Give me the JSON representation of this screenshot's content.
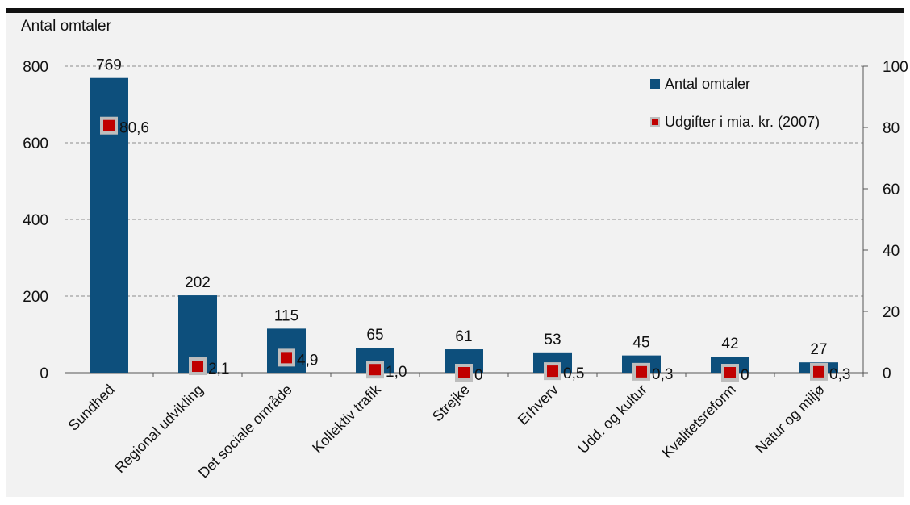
{
  "chart_data": {
    "type": "bar",
    "y_axis_title": "Antal omtaler",
    "categories": [
      "Sundhed",
      "Regional udvikling",
      "Det sociale område",
      "Kollektiv trafik",
      "Strejke",
      "Erhverv",
      "Udd. og kultur",
      "Kvalitetsreform",
      "Natur og miljø"
    ],
    "series": [
      {
        "name": "Antal omtaler",
        "kind": "bar",
        "axis": "left",
        "color": "#0d4f7c",
        "values": [
          769,
          202,
          115,
          65,
          61,
          53,
          45,
          42,
          27
        ],
        "labels": [
          "769",
          "202",
          "115",
          "65",
          "61",
          "53",
          "45",
          "42",
          "27"
        ]
      },
      {
        "name": "Udgifter i mia. kr. (2007)",
        "kind": "marker",
        "axis": "right",
        "color": "#c00000",
        "values": [
          80.6,
          2.1,
          4.9,
          1.0,
          0,
          0.5,
          0.3,
          0,
          0.3
        ],
        "labels": [
          "80,6",
          "2,1",
          "4,9",
          "1,0",
          "0",
          "0,5",
          "0,3",
          "0",
          "0,3"
        ]
      }
    ],
    "ylim_left": [
      0,
      800
    ],
    "yticks_left": [
      0,
      200,
      400,
      600,
      800
    ],
    "ylim_right": [
      0,
      100
    ],
    "yticks_right": [
      0,
      20,
      40,
      60,
      80,
      100
    ],
    "grid": "horizontal dashed",
    "legend_position": "top-right"
  }
}
